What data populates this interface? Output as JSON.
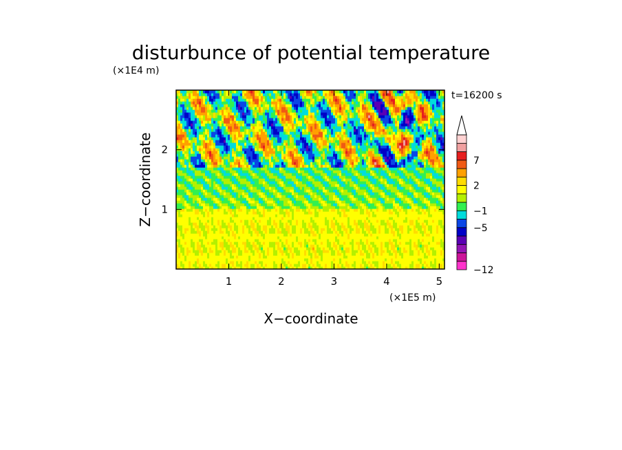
{
  "chart_data": {
    "type": "heatmap",
    "title": "disturbunce of potential temperature",
    "xlabel": "X−coordinate",
    "ylabel": "Z−coordinate",
    "x_unit": "(×1E5 m)",
    "y_unit": "(×1E4 m)",
    "time_label": "t=16200 s",
    "xlim": [
      0,
      5.1
    ],
    "ylim": [
      0,
      3.0
    ],
    "x_ticks": [
      1,
      2,
      3,
      4,
      5
    ],
    "y_ticks": [
      1,
      2
    ],
    "colorbar": {
      "levels": [
        -12,
        -11,
        -9,
        -7,
        -5,
        -3,
        -1,
        0,
        1,
        2,
        3,
        5,
        7,
        9,
        11
      ],
      "tick_labels": [
        "−12",
        "−5",
        "−1",
        "2",
        "7"
      ],
      "tick_values": [
        -12,
        -5,
        -1,
        2,
        7
      ],
      "colors": [
        "#ff33cc",
        "#cc1499",
        "#9414b4",
        "#5a00b4",
        "#0000c8",
        "#0a46e6",
        "#00dcdc",
        "#32f050",
        "#b4f000",
        "#ffff00",
        "#ffdc00",
        "#ffa000",
        "#f05a14",
        "#e61e1e",
        "#f0a0a0",
        "#ffd2d2"
      ],
      "extend": "max"
    },
    "grid": false
  }
}
